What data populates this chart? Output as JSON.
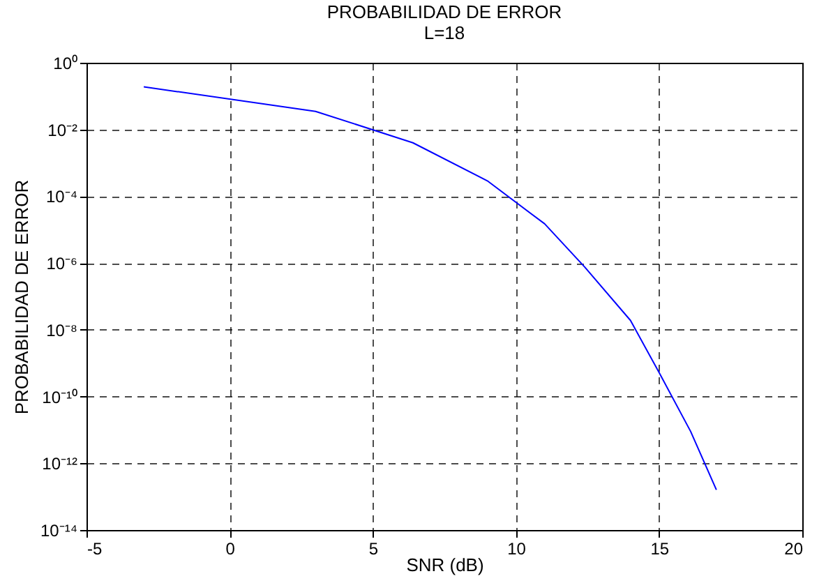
{
  "chart_data": {
    "type": "line",
    "title": "PROBABILIDAD DE ERROR",
    "subtitle": "L=18",
    "xlabel": "SNR (dB)",
    "ylabel": "PROBABILIDAD DE ERROR",
    "x": [
      -3,
      3,
      6.4,
      9,
      11,
      12.4,
      14,
      15,
      16.1,
      17
    ],
    "series": [
      {
        "color": "#0000ff",
        "values": [
          0.19,
          0.035,
          0.004,
          0.00029,
          1.5e-05,
          7.6e-07,
          1.9e-08,
          5.2e-10,
          9e-12,
          1.6e-13
        ]
      }
    ],
    "log": "y",
    "xlim": [
      -5,
      20
    ],
    "xticks": [
      -5,
      0,
      5,
      10,
      15,
      20
    ],
    "ylim": [
      1e-14,
      1
    ],
    "yticks": [
      {
        "value": 1e-14,
        "label": "10⁻¹⁴"
      },
      {
        "value": 1e-12,
        "label": "10⁻¹²"
      },
      {
        "value": 1e-10,
        "label": "10⁻¹⁰"
      },
      {
        "value": 1e-08,
        "label": "10⁻⁸"
      },
      {
        "value": 1e-06,
        "label": "10⁻⁶"
      },
      {
        "value": 0.0001,
        "label": "10⁻⁴"
      },
      {
        "value": 0.01,
        "label": "10⁻²"
      },
      {
        "value": 1,
        "label": "10⁰"
      }
    ],
    "grid": true,
    "line_style": "solid",
    "marker": "none",
    "legend": false
  }
}
